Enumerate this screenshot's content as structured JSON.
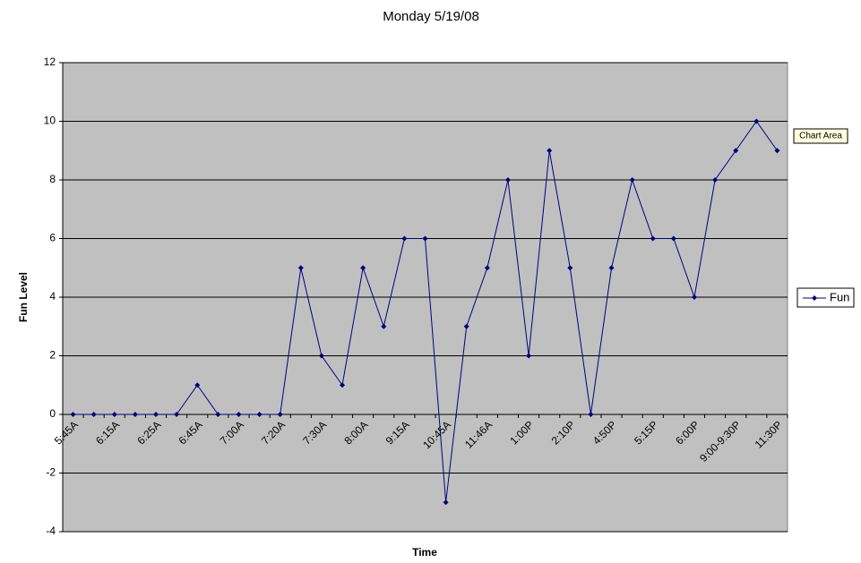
{
  "chart_data": {
    "type": "line",
    "title": "Monday 5/19/08",
    "x_label": "Time",
    "y_label": "Fun Level",
    "categories": [
      "5:45A",
      null,
      "6:15A",
      null,
      "6:25A",
      null,
      "6:45A",
      null,
      "7:00A",
      null,
      "7:20A",
      null,
      "7:30A",
      null,
      "8:00A",
      null,
      "9:15A",
      null,
      "10:45A",
      null,
      "11:46A",
      null,
      "1:00P",
      null,
      "2:10P",
      null,
      "4:50P",
      null,
      "5:15P",
      null,
      "6:00P",
      null,
      "9:00-9:30P",
      null,
      "11:30P"
    ],
    "series": [
      {
        "name": "Fun",
        "color": "#000080",
        "values": [
          0,
          0,
          0,
          0,
          0,
          0,
          1,
          0,
          0,
          0,
          0,
          5,
          2,
          1,
          5,
          3,
          6,
          6,
          -3,
          3,
          5,
          8,
          2,
          9,
          5,
          0,
          5,
          8,
          6,
          6,
          4,
          8,
          9,
          10,
          9
        ]
      }
    ],
    "ylim": [
      -4,
      12
    ],
    "yticks": [
      -4,
      -2,
      0,
      2,
      4,
      6,
      8,
      10,
      12
    ],
    "grid": true,
    "legend": "right",
    "tooltip": "Chart Area"
  }
}
